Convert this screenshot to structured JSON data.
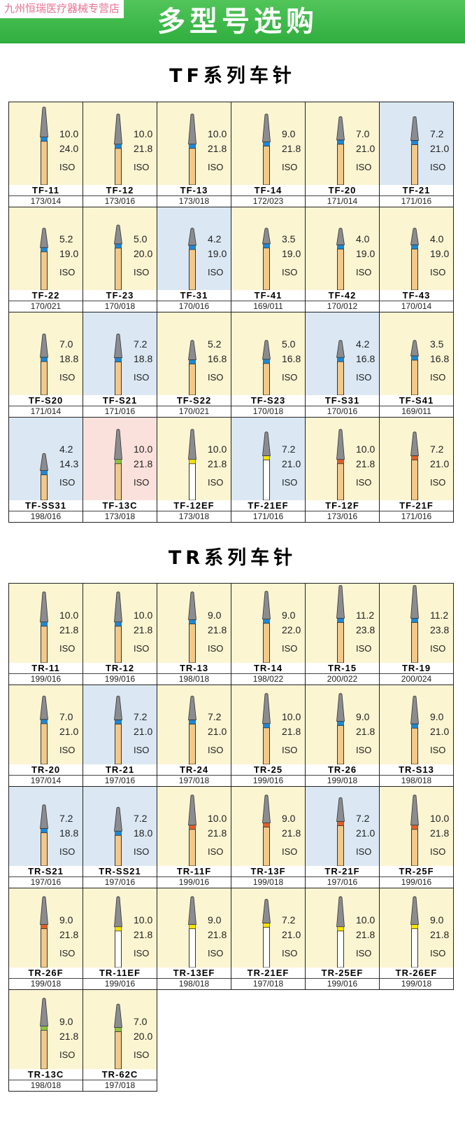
{
  "header": {
    "watermark": "九州恒瑞医疗器械专营店",
    "title": "多型号选购"
  },
  "iso": "ISO",
  "sections": [
    {
      "title": "TF系列车针",
      "items": [
        {
          "name": "TF-11",
          "code": "173/014",
          "length": "10.0",
          "diameter": "24.0",
          "bg": "#fcf5d2",
          "band": "#1e88d6",
          "shank": "#f2c98a"
        },
        {
          "name": "TF-12",
          "code": "173/016",
          "length": "10.0",
          "diameter": "21.8",
          "bg": "#fcf5d2",
          "band": "#1e88d6",
          "shank": "#f2c98a"
        },
        {
          "name": "TF-13",
          "code": "173/018",
          "length": "10.0",
          "diameter": "21.8",
          "bg": "#fcf5d2",
          "band": "#1e88d6",
          "shank": "#f2c98a"
        },
        {
          "name": "TF-14",
          "code": "172/023",
          "length": "9.0",
          "diameter": "21.8",
          "bg": "#fcf5d2",
          "band": "#1e88d6",
          "shank": "#f2c98a"
        },
        {
          "name": "TF-20",
          "code": "171/014",
          "length": "7.0",
          "diameter": "21.0",
          "bg": "#fcf5d2",
          "band": "#1e88d6",
          "shank": "#f2c98a"
        },
        {
          "name": "TF-21",
          "code": "171/016",
          "length": "7.2",
          "diameter": "21.0",
          "bg": "#dbe8f4",
          "band": "#1e88d6",
          "shank": "#f2c98a"
        },
        {
          "name": "TF-22",
          "code": "170/021",
          "length": "5.2",
          "diameter": "19.0",
          "bg": "#fcf5d2",
          "band": "#1e88d6",
          "shank": "#f2c98a"
        },
        {
          "name": "TF-23",
          "code": "170/018",
          "length": "5.0",
          "diameter": "20.0",
          "bg": "#fcf5d2",
          "band": "#1e88d6",
          "shank": "#f2c98a"
        },
        {
          "name": "TF-31",
          "code": "170/016",
          "length": "4.2",
          "diameter": "19.0",
          "bg": "#dbe8f4",
          "band": "#1e88d6",
          "shank": "#f2c98a"
        },
        {
          "name": "TF-41",
          "code": "169/011",
          "length": "3.5",
          "diameter": "19.0",
          "bg": "#fcf5d2",
          "band": "#1e88d6",
          "shank": "#f2c98a"
        },
        {
          "name": "TF-42",
          "code": "170/012",
          "length": "4.0",
          "diameter": "19.0",
          "bg": "#fcf5d2",
          "band": "#1e88d6",
          "shank": "#f2c98a"
        },
        {
          "name": "TF-43",
          "code": "170/014",
          "length": "4.0",
          "diameter": "19.0",
          "bg": "#fcf5d2",
          "band": "#1e88d6",
          "shank": "#f2c98a"
        },
        {
          "name": "TF-S20",
          "code": "171/014",
          "length": "7.0",
          "diameter": "18.8",
          "bg": "#fcf5d2",
          "band": "#1e88d6",
          "shank": "#f2c98a"
        },
        {
          "name": "TF-S21",
          "code": "171/016",
          "length": "7.2",
          "diameter": "18.8",
          "bg": "#dbe8f4",
          "band": "#1e88d6",
          "shank": "#f2c98a"
        },
        {
          "name": "TF-S22",
          "code": "170/021",
          "length": "5.2",
          "diameter": "16.8",
          "bg": "#fcf5d2",
          "band": "#1e88d6",
          "shank": "#f2c98a"
        },
        {
          "name": "TF-S23",
          "code": "170/018",
          "length": "5.0",
          "diameter": "16.8",
          "bg": "#fcf5d2",
          "band": "#1e88d6",
          "shank": "#f2c98a"
        },
        {
          "name": "TF-S31",
          "code": "170/016",
          "length": "4.2",
          "diameter": "16.8",
          "bg": "#dbe8f4",
          "band": "#1e88d6",
          "shank": "#f2c98a"
        },
        {
          "name": "TF-S41",
          "code": "169/011",
          "length": "3.5",
          "diameter": "16.8",
          "bg": "#fcf5d2",
          "band": "#1e88d6",
          "shank": "#f2c98a"
        },
        {
          "name": "TF-SS31",
          "code": "198/016",
          "length": "4.2",
          "diameter": "14.3",
          "bg": "#dbe8f4",
          "band": "#1e88d6",
          "shank": "#f2c98a"
        },
        {
          "name": "TF-13C",
          "code": "173/018",
          "length": "10.0",
          "diameter": "21.8",
          "bg": "#fbe1dc",
          "band": "#8dc63f",
          "shank": "#f2c98a"
        },
        {
          "name": "TF-12EF",
          "code": "173/018",
          "length": "10.0",
          "diameter": "21.8",
          "bg": "#fcf5d2",
          "band": "#f5e400",
          "shank": "#ffffff"
        },
        {
          "name": "TF-21EF",
          "code": "171/016",
          "length": "7.2",
          "diameter": "21.0",
          "bg": "#dbe8f4",
          "band": "#f5e400",
          "shank": "#ffffff"
        },
        {
          "name": "TF-12F",
          "code": "173/016",
          "length": "10.0",
          "diameter": "21.8",
          "bg": "#fcf5d2",
          "band": "#e0602a",
          "shank": "#f2c98a"
        },
        {
          "name": "TF-21F",
          "code": "171/016",
          "length": "7.2",
          "diameter": "21.0",
          "bg": "#fcf5d2",
          "band": "#e0602a",
          "shank": "#f2c98a"
        }
      ]
    },
    {
      "title": "TR系列车针",
      "items": [
        {
          "name": "TR-11",
          "code": "199/016",
          "length": "10.0",
          "diameter": "21.8",
          "bg": "#fcf5d2",
          "band": "#1e88d6",
          "shank": "#f2c98a"
        },
        {
          "name": "TR-12",
          "code": "199/016",
          "length": "10.0",
          "diameter": "21.8",
          "bg": "#fcf5d2",
          "band": "#1e88d6",
          "shank": "#f2c98a"
        },
        {
          "name": "TR-13",
          "code": "198/018",
          "length": "9.0",
          "diameter": "21.8",
          "bg": "#fcf5d2",
          "band": "#1e88d6",
          "shank": "#f2c98a"
        },
        {
          "name": "TR-14",
          "code": "198/022",
          "length": "9.0",
          "diameter": "22.0",
          "bg": "#fcf5d2",
          "band": "#1e88d6",
          "shank": "#f2c98a"
        },
        {
          "name": "TR-15",
          "code": "200/022",
          "length": "11.2",
          "diameter": "23.8",
          "bg": "#fcf5d2",
          "band": "#1e88d6",
          "shank": "#f2c98a"
        },
        {
          "name": "TR-19",
          "code": "200/024",
          "length": "11.2",
          "diameter": "23.8",
          "bg": "#fcf5d2",
          "band": "#1e88d6",
          "shank": "#f2c98a"
        },
        {
          "name": "TR-20",
          "code": "197/014",
          "length": "7.0",
          "diameter": "21.0",
          "bg": "#fcf5d2",
          "band": "#1e88d6",
          "shank": "#f2c98a"
        },
        {
          "name": "TR-21",
          "code": "197/016",
          "length": "7.2",
          "diameter": "21.0",
          "bg": "#dbe8f4",
          "band": "#1e88d6",
          "shank": "#f2c98a"
        },
        {
          "name": "TR-24",
          "code": "197/018",
          "length": "7.2",
          "diameter": "21.0",
          "bg": "#fcf5d2",
          "band": "#1e88d6",
          "shank": "#f2c98a"
        },
        {
          "name": "TR-25",
          "code": "199/016",
          "length": "10.0",
          "diameter": "21.8",
          "bg": "#fcf5d2",
          "band": "#1e88d6",
          "shank": "#f2c98a"
        },
        {
          "name": "TR-26",
          "code": "199/018",
          "length": "9.0",
          "diameter": "21.8",
          "bg": "#fcf5d2",
          "band": "#1e88d6",
          "shank": "#f2c98a"
        },
        {
          "name": "TR-S13",
          "code": "198/018",
          "length": "9.0",
          "diameter": "21.0",
          "bg": "#fcf5d2",
          "band": "#1e88d6",
          "shank": "#f2c98a"
        },
        {
          "name": "TR-S21",
          "code": "197/016",
          "length": "7.2",
          "diameter": "18.8",
          "bg": "#dbe8f4",
          "band": "#1e88d6",
          "shank": "#f2c98a"
        },
        {
          "name": "TR-SS21",
          "code": "197/016",
          "length": "7.2",
          "diameter": "18.0",
          "bg": "#dbe8f4",
          "band": "#1e88d6",
          "shank": "#f2c98a"
        },
        {
          "name": "TR-11F",
          "code": "199/016",
          "length": "10.0",
          "diameter": "21.8",
          "bg": "#fcf5d2",
          "band": "#e0602a",
          "shank": "#f2c98a"
        },
        {
          "name": "TR-13F",
          "code": "199/018",
          "length": "9.0",
          "diameter": "21.8",
          "bg": "#fcf5d2",
          "band": "#e0602a",
          "shank": "#f2c98a"
        },
        {
          "name": "TR-21F",
          "code": "197/016",
          "length": "7.2",
          "diameter": "21.0",
          "bg": "#dbe8f4",
          "band": "#e0602a",
          "shank": "#f2c98a"
        },
        {
          "name": "TR-25F",
          "code": "199/016",
          "length": "10.0",
          "diameter": "21.8",
          "bg": "#fcf5d2",
          "band": "#e0602a",
          "shank": "#f2c98a"
        },
        {
          "name": "TR-26F",
          "code": "199/018",
          "length": "9.0",
          "diameter": "21.8",
          "bg": "#fcf5d2",
          "band": "#e0602a",
          "shank": "#f2c98a"
        },
        {
          "name": "TR-11EF",
          "code": "199/016",
          "length": "10.0",
          "diameter": "21.8",
          "bg": "#fcf5d2",
          "band": "#f5e400",
          "shank": "#ffffff"
        },
        {
          "name": "TR-13EF",
          "code": "198/018",
          "length": "9.0",
          "diameter": "21.8",
          "bg": "#fcf5d2",
          "band": "#f5e400",
          "shank": "#ffffff"
        },
        {
          "name": "TR-21EF",
          "code": "197/018",
          "length": "7.2",
          "diameter": "21.0",
          "bg": "#fcf5d2",
          "band": "#f5e400",
          "shank": "#ffffff"
        },
        {
          "name": "TR-25EF",
          "code": "199/016",
          "length": "10.0",
          "diameter": "21.8",
          "bg": "#fcf5d2",
          "band": "#f5e400",
          "shank": "#ffffff"
        },
        {
          "name": "TR-26EF",
          "code": "199/018",
          "length": "9.0",
          "diameter": "21.8",
          "bg": "#fcf5d2",
          "band": "#f5e400",
          "shank": "#ffffff"
        },
        {
          "name": "TR-13C",
          "code": "198/018",
          "length": "9.0",
          "diameter": "21.8",
          "bg": "#fcf5d2",
          "band": "#8dc63f",
          "shank": "#f2c98a"
        },
        {
          "name": "TR-62C",
          "code": "197/018",
          "length": "7.0",
          "diameter": "20.0",
          "bg": "#fcf5d2",
          "band": "#8dc63f",
          "shank": "#f2c98a"
        }
      ]
    }
  ]
}
